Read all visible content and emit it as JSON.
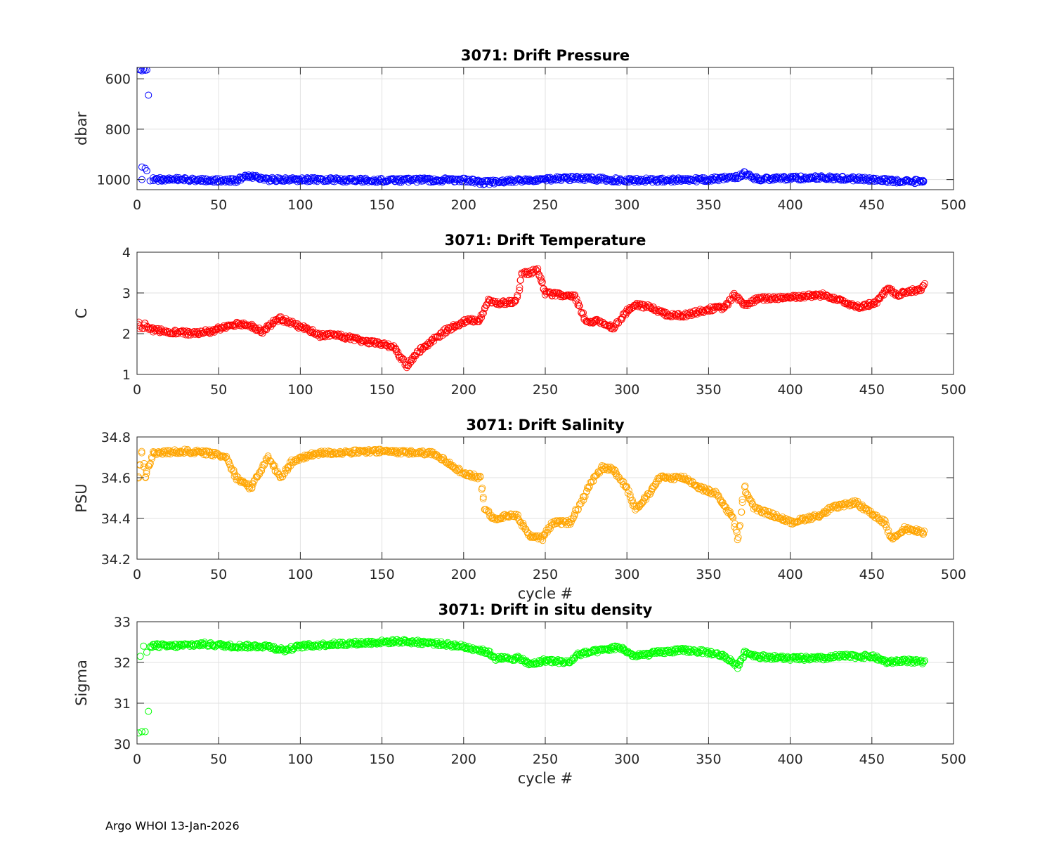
{
  "footer": "Argo WHOI 13-Jan-2026",
  "chart_data": [
    {
      "type": "scatter",
      "title": "3071: Drift Pressure",
      "xlabel": "",
      "ylabel": "dbar",
      "xlim": [
        0,
        500
      ],
      "ylim": [
        1040,
        555
      ],
      "y_reversed": true,
      "xticks": [
        0,
        50,
        100,
        150,
        200,
        250,
        300,
        350,
        400,
        450,
        500
      ],
      "yticks": [
        600,
        800,
        1000
      ],
      "color": "#0000ff",
      "grid": true,
      "marker": "circle",
      "n_cycles": 482,
      "series": [
        {
          "name": "outliers",
          "x": [
            1,
            2,
            3,
            4,
            5,
            6,
            7,
            3,
            5,
            6,
            3,
            8
          ],
          "values": [
            563,
            565,
            568,
            563,
            566,
            565,
            665,
            950,
            955,
            965,
            1000,
            1005
          ]
        },
        {
          "name": "trend",
          "x": [
            10,
            20,
            40,
            60,
            67,
            80,
            100,
            150,
            200,
            212,
            250,
            270,
            300,
            350,
            368,
            372,
            380,
            420,
            450,
            462,
            482
          ],
          "values": [
            1000,
            998,
            1002,
            1005,
            985,
            1000,
            1000,
            1003,
            1001,
            1012,
            998,
            995,
            1003,
            1000,
            988,
            975,
            998,
            992,
            1000,
            1005,
            1008
          ]
        }
      ]
    },
    {
      "type": "scatter",
      "title": "3071: Drift Temperature",
      "xlabel": "",
      "ylabel": "C",
      "xlim": [
        0,
        500
      ],
      "ylim": [
        1,
        4
      ],
      "xticks": [
        0,
        50,
        100,
        150,
        200,
        250,
        300,
        350,
        400,
        450,
        500
      ],
      "yticks": [
        1,
        2,
        3,
        4
      ],
      "color": "#ff0000",
      "grid": true,
      "marker": "circle",
      "series": [
        {
          "name": "temperature",
          "x": [
            1,
            3,
            5,
            8,
            20,
            35,
            40,
            45,
            55,
            62,
            70,
            77,
            87,
            95,
            105,
            112,
            120,
            130,
            140,
            150,
            158,
            165,
            172,
            180,
            190,
            200,
            210,
            215,
            220,
            232,
            236,
            240,
            245,
            250,
            258,
            268,
            275,
            283,
            292,
            300,
            305,
            315,
            325,
            335,
            350,
            360,
            366,
            372,
            380,
            400,
            420,
            430,
            440,
            452,
            460,
            465,
            480,
            482
          ],
          "values": [
            2.25,
            2.1,
            2.25,
            2.1,
            2.05,
            2.0,
            2.05,
            2.05,
            2.2,
            2.25,
            2.2,
            2.05,
            2.38,
            2.25,
            2.1,
            1.95,
            1.98,
            1.9,
            1.8,
            1.75,
            1.65,
            1.2,
            1.55,
            1.8,
            2.1,
            2.3,
            2.35,
            2.8,
            2.75,
            2.78,
            3.45,
            3.5,
            3.55,
            3.0,
            2.95,
            2.9,
            2.3,
            2.3,
            2.15,
            2.55,
            2.7,
            2.65,
            2.45,
            2.45,
            2.6,
            2.65,
            2.95,
            2.7,
            2.85,
            2.9,
            2.95,
            2.85,
            2.65,
            2.75,
            3.1,
            2.95,
            3.1,
            3.2
          ]
        }
      ]
    },
    {
      "type": "scatter",
      "title": "3071: Drift Salinity",
      "xlabel": "cycle #",
      "ylabel": "PSU",
      "xlim": [
        0,
        500
      ],
      "ylim": [
        34.2,
        34.8
      ],
      "xticks": [
        0,
        50,
        100,
        150,
        200,
        250,
        300,
        350,
        400,
        450,
        500
      ],
      "yticks": [
        34.2,
        34.4,
        34.6,
        34.8
      ],
      "color": "#ffa500",
      "grid": true,
      "marker": "circle",
      "series": [
        {
          "name": "salinity",
          "x": [
            1,
            3,
            5,
            7,
            10,
            30,
            45,
            55,
            61,
            70,
            80,
            88,
            95,
            110,
            150,
            180,
            190,
            200,
            210,
            213,
            218,
            232,
            240,
            248,
            255,
            265,
            270,
            278,
            285,
            292,
            300,
            305,
            312,
            320,
            335,
            345,
            355,
            365,
            368,
            372,
            378,
            395,
            400,
            420,
            425,
            440,
            450,
            458,
            462,
            470,
            482
          ],
          "values": [
            34.6,
            34.72,
            34.6,
            34.65,
            34.72,
            34.73,
            34.72,
            34.7,
            34.6,
            34.55,
            34.7,
            34.6,
            34.68,
            34.72,
            34.73,
            34.72,
            34.68,
            34.62,
            34.6,
            34.45,
            34.4,
            34.42,
            34.32,
            34.3,
            34.38,
            34.38,
            34.45,
            34.58,
            34.65,
            34.64,
            34.55,
            34.45,
            34.5,
            34.6,
            34.6,
            34.55,
            34.52,
            34.4,
            34.3,
            34.55,
            34.45,
            34.4,
            34.38,
            34.42,
            34.45,
            34.48,
            34.42,
            34.38,
            34.3,
            34.35,
            34.33
          ]
        }
      ]
    },
    {
      "type": "scatter",
      "title": "3071: Drift in situ density",
      "xlabel": "cycle #",
      "ylabel": "Sigma",
      "xlim": [
        0,
        500
      ],
      "ylim": [
        30,
        33
      ],
      "xticks": [
        0,
        50,
        100,
        150,
        200,
        250,
        300,
        350,
        400,
        450,
        500
      ],
      "yticks": [
        30,
        31,
        32,
        33
      ],
      "color": "#00ff00",
      "grid": true,
      "marker": "circle",
      "series": [
        {
          "name": "outliers",
          "x": [
            1,
            3,
            5,
            7,
            2,
            4,
            6
          ],
          "values": [
            30.27,
            30.3,
            30.3,
            30.8,
            32.15,
            32.4,
            32.25
          ]
        },
        {
          "name": "density",
          "x": [
            8,
            20,
            40,
            60,
            80,
            90,
            100,
            120,
            150,
            160,
            180,
            195,
            205,
            215,
            220,
            235,
            240,
            250,
            265,
            270,
            285,
            295,
            305,
            320,
            335,
            350,
            360,
            368,
            372,
            380,
            400,
            420,
            430,
            450,
            460,
            470,
            482
          ],
          "values": [
            32.42,
            32.4,
            32.45,
            32.4,
            32.4,
            32.3,
            32.4,
            32.45,
            32.5,
            32.52,
            32.48,
            32.42,
            32.35,
            32.25,
            32.1,
            32.1,
            31.95,
            32.05,
            32.0,
            32.2,
            32.3,
            32.38,
            32.15,
            32.25,
            32.3,
            32.25,
            32.15,
            31.9,
            32.25,
            32.15,
            32.1,
            32.1,
            32.15,
            32.15,
            32.0,
            32.05,
            32.0
          ]
        }
      ]
    }
  ]
}
